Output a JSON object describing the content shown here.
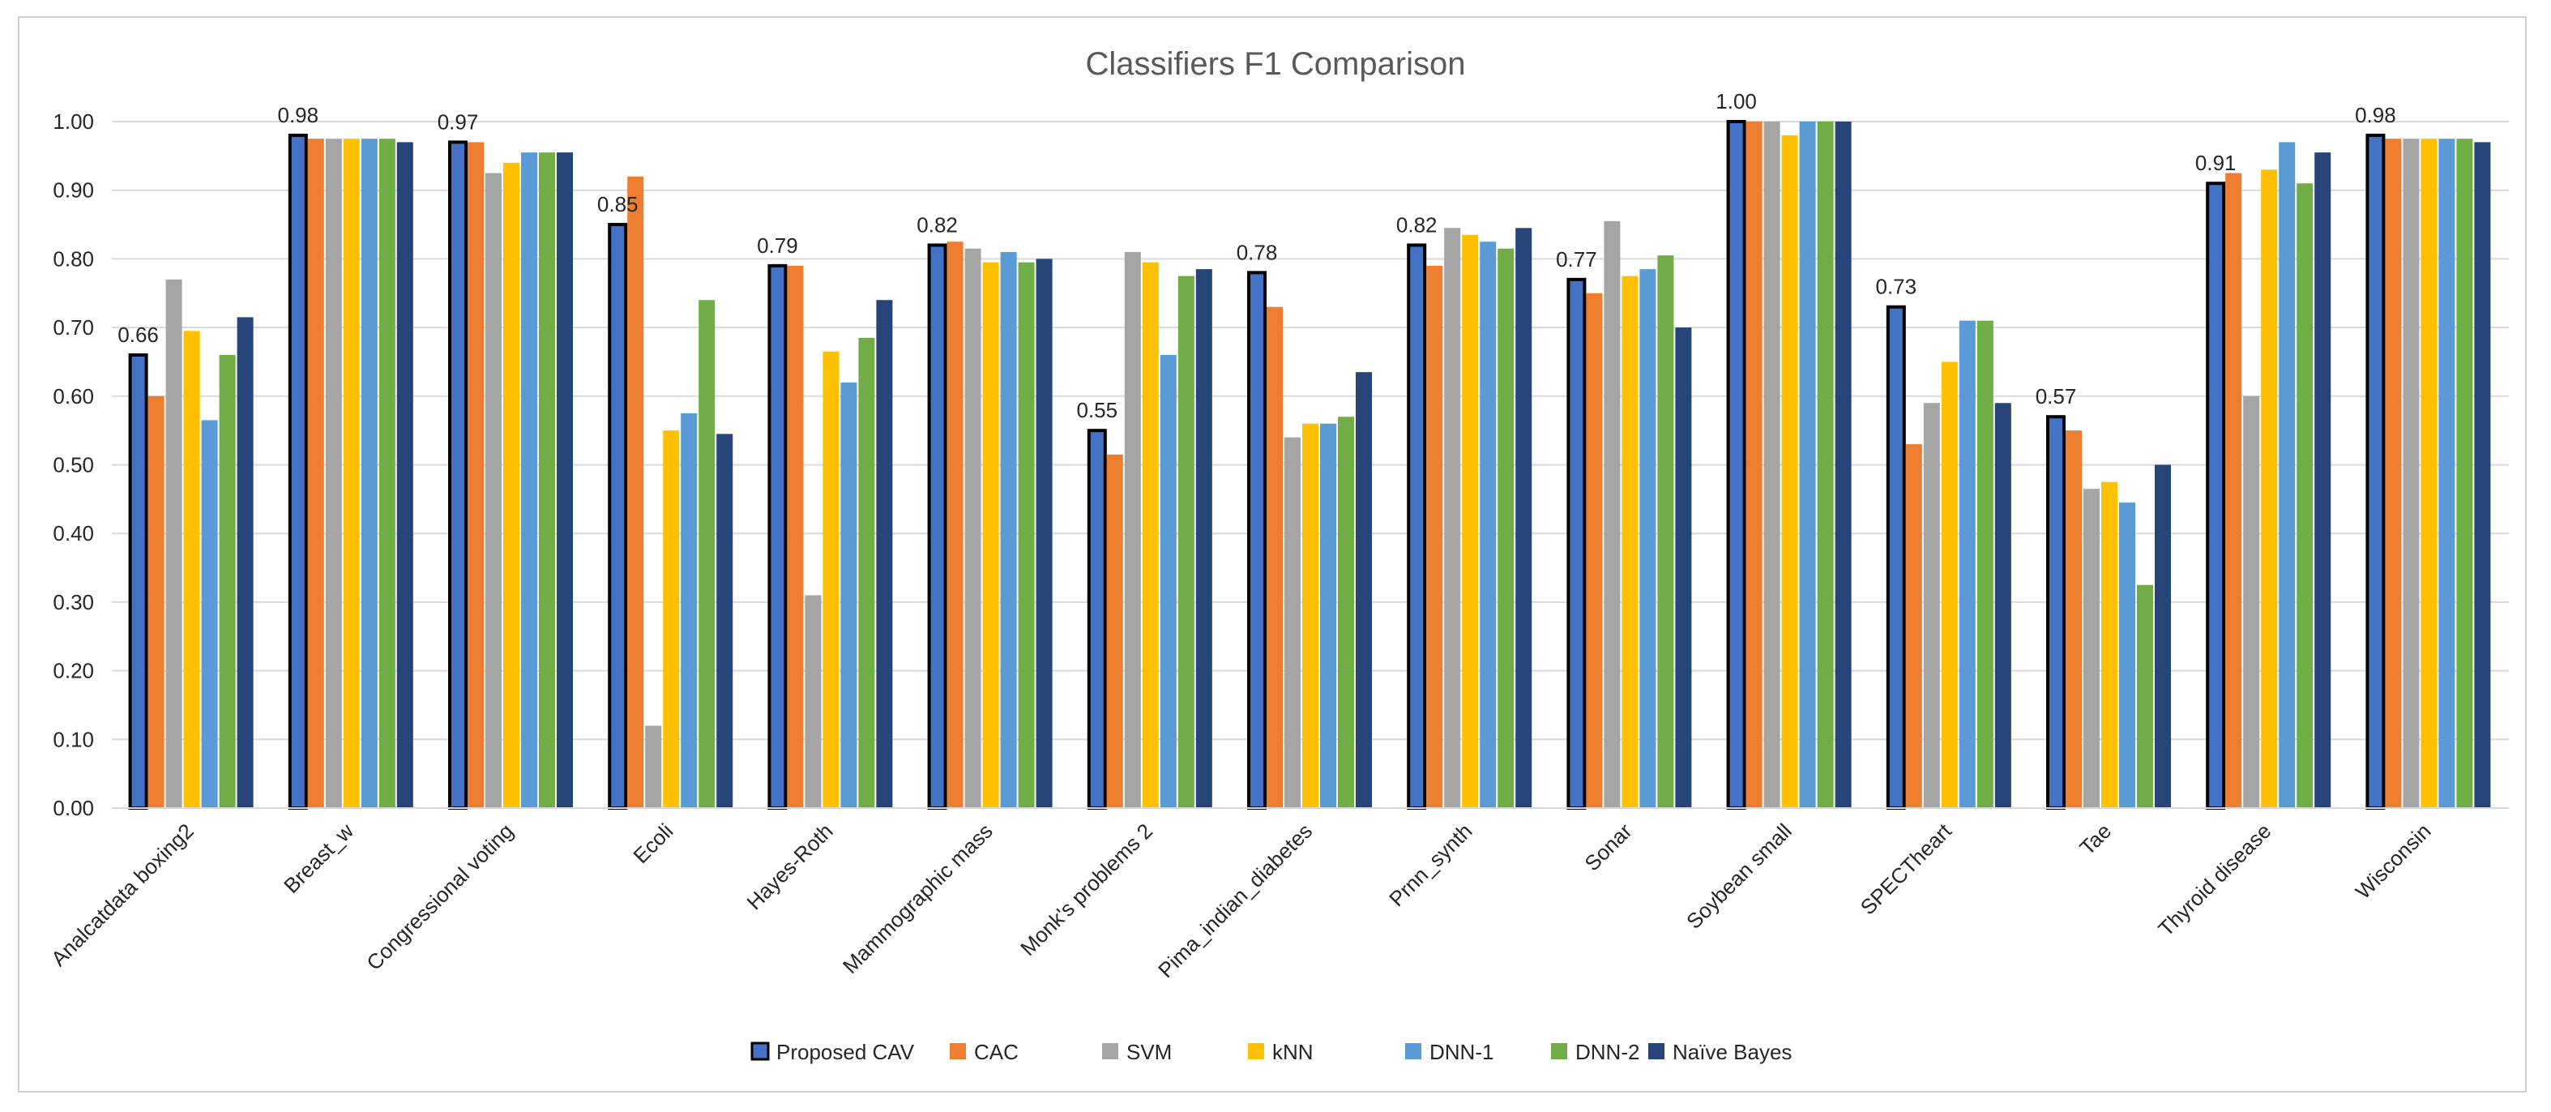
{
  "chart_data": {
    "type": "bar",
    "title": "Classifiers F1 Comparison",
    "xlabel": "",
    "ylabel": "",
    "ylim": [
      0,
      1.0
    ],
    "ytick_step": 0.1,
    "grid": true,
    "legend_position": "bottom",
    "categories": [
      "Analcatdata boxing2",
      "Breast_w",
      "Congressional voting",
      "Ecoli",
      "Hayes-Roth",
      "Mammographic mass",
      "Monk's problems 2",
      "Pima_indian_diabetes",
      "Prnn_synth",
      "Sonar",
      "Soybean small",
      "SPECTheart",
      "Tae",
      "Thyroid disease",
      "Wisconsin"
    ],
    "series": [
      {
        "name": "Proposed CAV",
        "color": "#4472C4",
        "values": [
          0.66,
          0.98,
          0.97,
          0.85,
          0.79,
          0.82,
          0.55,
          0.78,
          0.82,
          0.77,
          1.0,
          0.73,
          0.57,
          0.91,
          0.98
        ],
        "data_labels": [
          "0.66",
          "0.98",
          "0.97",
          "0.85",
          "0.79",
          "0.82",
          "0.55",
          "0.78",
          "0.82",
          "0.77",
          "1.00",
          "0.73",
          "0.57",
          "0.91",
          "0.98"
        ]
      },
      {
        "name": "CAC",
        "color": "#ED7D31",
        "values": [
          0.6,
          0.975,
          0.97,
          0.92,
          0.79,
          0.825,
          0.515,
          0.73,
          0.79,
          0.75,
          1.0,
          0.53,
          0.55,
          0.925,
          0.975
        ]
      },
      {
        "name": "SVM",
        "color": "#A5A5A5",
        "values": [
          0.77,
          0.975,
          0.925,
          0.12,
          0.31,
          0.815,
          0.81,
          0.54,
          0.845,
          0.855,
          1.0,
          0.59,
          0.465,
          0.6,
          0.975
        ]
      },
      {
        "name": "kNN",
        "color": "#FFC000",
        "values": [
          0.695,
          0.975,
          0.94,
          0.55,
          0.665,
          0.795,
          0.795,
          0.56,
          0.835,
          0.775,
          0.98,
          0.65,
          0.475,
          0.93,
          0.975
        ]
      },
      {
        "name": "DNN-1",
        "color": "#5B9BD5",
        "values": [
          0.565,
          0.975,
          0.955,
          0.575,
          0.62,
          0.81,
          0.66,
          0.56,
          0.825,
          0.785,
          1.0,
          0.71,
          0.445,
          0.97,
          0.975
        ]
      },
      {
        "name": "DNN-2",
        "color": "#70AD47",
        "values": [
          0.66,
          0.975,
          0.955,
          0.74,
          0.685,
          0.795,
          0.775,
          0.57,
          0.815,
          0.805,
          1.0,
          0.71,
          0.325,
          0.91,
          0.975
        ]
      },
      {
        "name": "Naïve Bayes",
        "color": "#264478",
        "values": [
          0.715,
          0.97,
          0.955,
          0.545,
          0.74,
          0.8,
          0.785,
          0.635,
          0.845,
          0.7,
          1.0,
          0.59,
          0.5,
          0.955,
          0.97
        ]
      }
    ]
  }
}
